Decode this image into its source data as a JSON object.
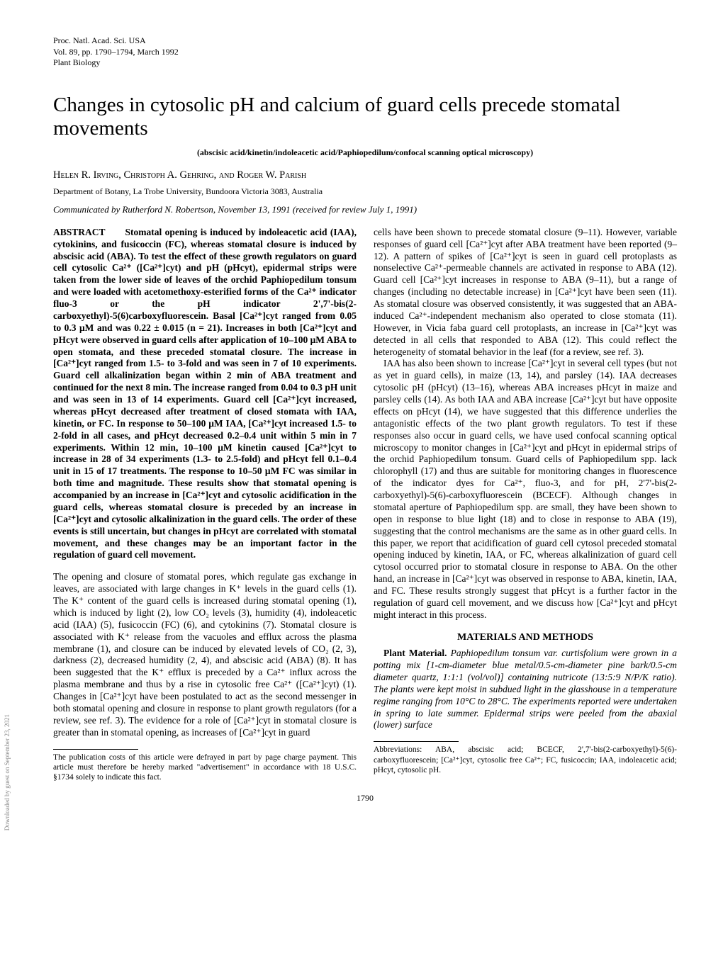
{
  "journal": {
    "line1": "Proc. Natl. Acad. Sci. USA",
    "line2": "Vol. 89, pp. 1790–1794, March 1992",
    "line3": "Plant Biology"
  },
  "title": "Changes in cytosolic pH and calcium of guard cells precede stomatal movements",
  "keywords": "(abscisic acid/kinetin/indoleacetic acid/Paphiopedilum/confocal scanning optical microscopy)",
  "authors": "Helen R. Irving, Christoph A. Gehring, and Roger W. Parish",
  "affiliation": "Department of Botany, La Trobe University, Bundoora Victoria 3083, Australia",
  "communicated": "Communicated by Rutherford N. Robertson, November 13, 1991 (received for review July 1, 1991)",
  "abstract_label": "ABSTRACT",
  "abstract": "Stomatal opening is induced by indoleacetic acid (IAA), cytokinins, and fusicoccin (FC), whereas stomatal closure is induced by abscisic acid (ABA). To test the effect of these growth regulators on guard cell cytosolic Ca²⁺ ([Ca²⁺]cyt) and pH (pHcyt), epidermal strips were taken from the lower side of leaves of the orchid Paphiopedilum tonsum and were loaded with acetomethoxy-esterified forms of the Ca²⁺ indicator fluo-3 or the pH indicator 2',7'-bis(2-carboxyethyl)-5(6)carboxyfluorescein. Basal [Ca²⁺]cyt ranged from 0.05 to 0.3 μM and was 0.22 ± 0.015 (n = 21). Increases in both [Ca²⁺]cyt and pHcyt were observed in guard cells after application of 10–100 μM ABA to open stomata, and these preceded stomatal closure. The increase in [Ca²⁺]cyt ranged from 1.5- to 3-fold and was seen in 7 of 10 experiments. Guard cell alkalinization began within 2 min of ABA treatment and continued for the next 8 min. The increase ranged from 0.04 to 0.3 pH unit and was seen in 13 of 14 experiments. Guard cell [Ca²⁺]cyt increased, whereas pHcyt decreased after treatment of closed stomata with IAA, kinetin, or FC. In response to 50–100 μM IAA, [Ca²⁺]cyt increased 1.5- to 2-fold in all cases, and pHcyt decreased 0.2–0.4 unit within 5 min in 7 experiments. Within 12 min, 10–100 μM kinetin caused [Ca²⁺]cyt to increase in 28 of 34 experiments (1.3- to 2.5-fold) and pHcyt fell 0.1–0.4 unit in 15 of 17 treatments. The response to 10–50 μM FC was similar in both time and magnitude. These results show that stomatal opening is accompanied by an increase in [Ca²⁺]cyt and cytosolic acidification in the guard cells, whereas stomatal closure is preceded by an increase in [Ca²⁺]cyt and cytosolic alkalinization in the guard cells. The order of these events is still uncertain, but changes in pHcyt are correlated with stomatal movement, and these changes may be an important factor in the regulation of guard cell movement.",
  "intro_p1": "The opening and closure of stomatal pores, which regulate gas exchange in leaves, are associated with large changes in K⁺ levels in the guard cells (1). The K⁺ content of the guard cells is increased during stomatal opening (1), which is induced by light (2), low CO₂ levels (3), humidity (4), indoleacetic acid (IAA) (5), fusicoccin (FC) (6), and cytokinins (7). Stomatal closure is associated with K⁺ release from the vacuoles and efflux across the plasma membrane (1), and closure can be induced by elevated levels of CO₂ (2, 3), darkness (2), decreased humidity (2, 4), and abscisic acid (ABA) (8). It has been suggested that the K⁺ efflux is preceded by a Ca²⁺ influx across the plasma membrane and thus by a rise in cytosolic free Ca²⁺ ([Ca²⁺]cyt) (1). Changes in [Ca²⁺]cyt have been postulated to act as the second messenger in both stomatal opening and closure in response to plant growth regulators (for a review, see ref. 3). The evidence for a role of [Ca²⁺]cyt in stomatal closure is greater than in stomatal opening, as increases of [Ca²⁺]cyt in guard",
  "footnote_left": "The publication costs of this article were defrayed in part by page charge payment. This article must therefore be hereby marked \"advertisement\" in accordance with 18 U.S.C. §1734 solely to indicate this fact.",
  "col2_p1": "cells have been shown to precede stomatal closure (9–11). However, variable responses of guard cell [Ca²⁺]cyt after ABA treatment have been reported (9–12). A pattern of spikes of [Ca²⁺]cyt is seen in guard cell protoplasts as nonselective Ca²⁺-permeable channels are activated in response to ABA (12). Guard cell [Ca²⁺]cyt increases in response to ABA (9–11), but a range of changes (including no detectable increase) in [Ca²⁺]cyt have been seen (11). As stomatal closure was observed consistently, it was suggested that an ABA-induced Ca²⁺-independent mechanism also operated to close stomata (11). However, in Vicia faba guard cell protoplasts, an increase in [Ca²⁺]cyt was detected in all cells that responded to ABA (12). This could reflect the heterogeneity of stomatal behavior in the leaf (for a review, see ref. 3).",
  "col2_p2": "IAA has also been shown to increase [Ca²⁺]cyt in several cell types (but not as yet in guard cells), in maize (13, 14), and parsley (14). IAA decreases cytosolic pH (pHcyt) (13–16), whereas ABA increases pHcyt in maize and parsley cells (14). As both IAA and ABA increase [Ca²⁺]cyt but have opposite effects on pHcyt (14), we have suggested that this difference underlies the antagonistic effects of the two plant growth regulators. To test if these responses also occur in guard cells, we have used confocal scanning optical microscopy to monitor changes in [Ca²⁺]cyt and pHcyt in epidermal strips of the orchid Paphiopedilum tonsum. Guard cells of Paphiopedilum spp. lack chlorophyll (17) and thus are suitable for monitoring changes in fluorescence of the indicator dyes for Ca²⁺, fluo-3, and for pH, 2'7'-bis(2-carboxyethyl)-5(6)-carboxyfluorescein (BCECF). Although changes in stomatal aperture of Paphiopedilum spp. are small, they have been shown to open in response to blue light (18) and to close in response to ABA (19), suggesting that the control mechanisms are the same as in other guard cells. In this paper, we report that acidification of guard cell cytosol preceded stomatal opening induced by kinetin, IAA, or FC, whereas alkalinization of guard cell cytosol occurred prior to stomatal closure in response to ABA. On the other hand, an increase in [Ca²⁺]cyt was observed in response to ABA, kinetin, IAA, and FC. These results strongly suggest that pHcyt is a further factor in the regulation of guard cell movement, and we discuss how [Ca²⁺]cyt and pHcyt might interact in this process.",
  "methods_heading": "MATERIALS AND METHODS",
  "methods_p1_label": "Plant Material.",
  "methods_p1": " Paphiopedilum tonsum var. curtisfolium were grown in a potting mix [1-cm-diameter blue metal/0.5-cm-diameter pine bark/0.5-cm diameter quartz, 1:1:1 (vol/vol)] containing nutricote (13:5:9 N/P/K ratio). The plants were kept moist in subdued light in the glasshouse in a temperature regime ranging from 10°C to 28°C. The experiments reported were undertaken in spring to late summer. Epidermal strips were peeled from the abaxial (lower) surface",
  "footnote_right": "Abbreviations: ABA, abscisic acid; BCECF, 2',7'-bis(2-carboxyethyl)-5(6)-carboxyfluorescein; [Ca²⁺]cyt, cytosolic free Ca²⁺; FC, fusicoccin; IAA, indoleacetic acid; pHcyt, cytosolic pH.",
  "page_number": "1790",
  "sidebar": "Downloaded by guest on September 23, 2021"
}
